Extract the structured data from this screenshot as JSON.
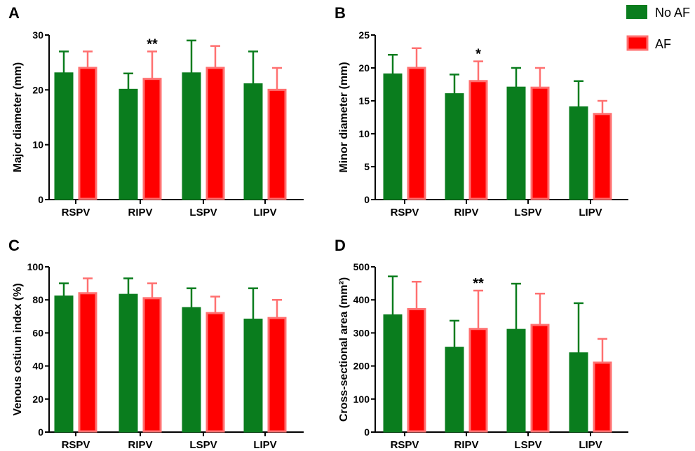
{
  "legend": {
    "items": [
      {
        "label": "No AF",
        "fill": "#0a7d1e",
        "stroke": "#0a7d1e"
      },
      {
        "label": "AF",
        "fill": "#ff0000",
        "stroke": "#ff7070"
      }
    ]
  },
  "colors": {
    "no_af_fill": "#0a7d1e",
    "no_af_stroke": "#0a7d1e",
    "af_fill": "#ff0000",
    "af_stroke": "#ff7070"
  },
  "chart_data": [
    {
      "type": "bar",
      "panel": "A",
      "ylabel": "Major diameter (mm)",
      "categories": [
        "RSPV",
        "RIPV",
        "LSPV",
        "LIPV"
      ],
      "ylim": [
        0,
        30
      ],
      "yticks": [
        0,
        10,
        20,
        30
      ],
      "series": [
        {
          "name": "No AF",
          "values": [
            23,
            20,
            23,
            21
          ],
          "error": [
            4,
            3,
            6,
            6
          ]
        },
        {
          "name": "AF",
          "values": [
            24,
            22,
            24,
            20
          ],
          "error": [
            3,
            5,
            4,
            4
          ]
        }
      ],
      "annotations": [
        {
          "category": "RIPV",
          "series": "AF",
          "text": "**"
        }
      ]
    },
    {
      "type": "bar",
      "panel": "B",
      "ylabel": "Minor diameter (mm)",
      "categories": [
        "RSPV",
        "RIPV",
        "LSPV",
        "LIPV"
      ],
      "ylim": [
        0,
        25
      ],
      "yticks": [
        0,
        5,
        10,
        15,
        20,
        25
      ],
      "series": [
        {
          "name": "No AF",
          "values": [
            19,
            16,
            17,
            14
          ],
          "error": [
            3,
            3,
            3,
            4
          ]
        },
        {
          "name": "AF",
          "values": [
            20,
            18,
            17,
            13
          ],
          "error": [
            3,
            3,
            3,
            2
          ]
        }
      ],
      "annotations": [
        {
          "category": "RIPV",
          "series": "AF",
          "text": "*"
        }
      ]
    },
    {
      "type": "bar",
      "panel": "C",
      "ylabel": "Venous ostium index (%)",
      "categories": [
        "RSPV",
        "RIPV",
        "LSPV",
        "LIPV"
      ],
      "ylim": [
        0,
        100
      ],
      "yticks": [
        0,
        20,
        40,
        60,
        80,
        100
      ],
      "series": [
        {
          "name": "No AF",
          "values": [
            82,
            83,
            75,
            68
          ],
          "error": [
            8,
            10,
            12,
            19
          ]
        },
        {
          "name": "AF",
          "values": [
            84,
            81,
            72,
            69
          ],
          "error": [
            9,
            9,
            10,
            11
          ]
        }
      ],
      "annotations": []
    },
    {
      "type": "bar",
      "panel": "D",
      "ylabel": "Cross-sectional area (mm²)",
      "categories": [
        "RSPV",
        "RIPV",
        "LSPV",
        "LIPV"
      ],
      "ylim": [
        0,
        500
      ],
      "yticks": [
        0,
        100,
        200,
        300,
        400,
        500
      ],
      "series": [
        {
          "name": "No AF",
          "values": [
            353,
            255,
            309,
            238
          ],
          "error": [
            118,
            82,
            140,
            152
          ]
        },
        {
          "name": "AF",
          "values": [
            372,
            312,
            324,
            210
          ],
          "error": [
            83,
            116,
            95,
            72
          ]
        }
      ],
      "annotations": [
        {
          "category": "RIPV",
          "series": "AF",
          "text": "**"
        }
      ]
    }
  ]
}
